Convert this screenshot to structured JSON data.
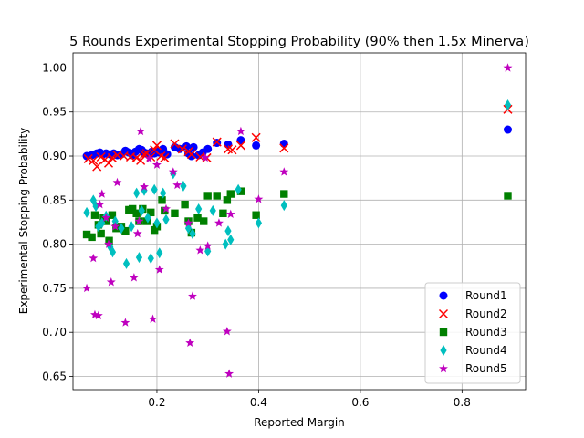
{
  "chart_data": {
    "type": "scatter",
    "title": "5 Rounds Experimental Stopping Probability (90% then 1.5x Minerva)",
    "xlabel": "Reported Margin",
    "ylabel": "Experimental Stopping Probability",
    "xlim": [
      0.035,
      0.925
    ],
    "ylim": [
      0.635,
      1.017
    ],
    "xticks": [
      0.2,
      0.4,
      0.6,
      0.8
    ],
    "xtick_labels": [
      "0.2",
      "0.4",
      "0.6",
      "0.8"
    ],
    "yticks": [
      0.65,
      0.7,
      0.75,
      0.8,
      0.85,
      0.9,
      0.95,
      1.0
    ],
    "ytick_labels": [
      "0.65",
      "0.70",
      "0.75",
      "0.80",
      "0.85",
      "0.90",
      "0.95",
      "1.00"
    ],
    "grid": true,
    "legend_position": "lower-right",
    "series": [
      {
        "name": "Round1",
        "color": "#0000ff",
        "marker": "circle",
        "points": [
          [
            0.062,
            0.9
          ],
          [
            0.072,
            0.901
          ],
          [
            0.078,
            0.902
          ],
          [
            0.082,
            0.903
          ],
          [
            0.088,
            0.904
          ],
          [
            0.094,
            0.902
          ],
          [
            0.1,
            0.903
          ],
          [
            0.108,
            0.902
          ],
          [
            0.115,
            0.903
          ],
          [
            0.122,
            0.901
          ],
          [
            0.13,
            0.902
          ],
          [
            0.138,
            0.906
          ],
          [
            0.145,
            0.904
          ],
          [
            0.152,
            0.901
          ],
          [
            0.158,
            0.905
          ],
          [
            0.165,
            0.908
          ],
          [
            0.17,
            0.907
          ],
          [
            0.175,
            0.904
          ],
          [
            0.18,
            0.903
          ],
          [
            0.185,
            0.902
          ],
          [
            0.19,
            0.905
          ],
          [
            0.195,
            0.903
          ],
          [
            0.2,
            0.906
          ],
          [
            0.205,
            0.904
          ],
          [
            0.212,
            0.908
          ],
          [
            0.22,
            0.902
          ],
          [
            0.235,
            0.91
          ],
          [
            0.245,
            0.908
          ],
          [
            0.258,
            0.911
          ],
          [
            0.262,
            0.903
          ],
          [
            0.268,
            0.9
          ],
          [
            0.272,
            0.91
          ],
          [
            0.282,
            0.901
          ],
          [
            0.29,
            0.904
          ],
          [
            0.3,
            0.908
          ],
          [
            0.318,
            0.915
          ],
          [
            0.34,
            0.913
          ],
          [
            0.365,
            0.918
          ],
          [
            0.395,
            0.912
          ],
          [
            0.45,
            0.914
          ],
          [
            0.89,
            0.93
          ]
        ]
      },
      {
        "name": "Round2",
        "color": "#ff0000",
        "marker": "x",
        "points": [
          [
            0.065,
            0.897
          ],
          [
            0.075,
            0.895
          ],
          [
            0.082,
            0.888
          ],
          [
            0.09,
            0.899
          ],
          [
            0.098,
            0.896
          ],
          [
            0.105,
            0.892
          ],
          [
            0.112,
            0.898
          ],
          [
            0.122,
            0.901
          ],
          [
            0.135,
            0.9
          ],
          [
            0.148,
            0.899
          ],
          [
            0.16,
            0.898
          ],
          [
            0.168,
            0.895
          ],
          [
            0.175,
            0.902
          ],
          [
            0.18,
            0.903
          ],
          [
            0.188,
            0.899
          ],
          [
            0.195,
            0.907
          ],
          [
            0.2,
            0.912
          ],
          [
            0.208,
            0.9
          ],
          [
            0.215,
            0.898
          ],
          [
            0.235,
            0.914
          ],
          [
            0.25,
            0.908
          ],
          [
            0.262,
            0.905
          ],
          [
            0.268,
            0.902
          ],
          [
            0.285,
            0.899
          ],
          [
            0.298,
            0.898
          ],
          [
            0.318,
            0.916
          ],
          [
            0.34,
            0.908
          ],
          [
            0.348,
            0.907
          ],
          [
            0.365,
            0.912
          ],
          [
            0.395,
            0.921
          ],
          [
            0.45,
            0.909
          ],
          [
            0.89,
            0.953
          ]
        ]
      },
      {
        "name": "Round3",
        "color": "#008000",
        "marker": "square",
        "points": [
          [
            0.062,
            0.811
          ],
          [
            0.072,
            0.808
          ],
          [
            0.078,
            0.833
          ],
          [
            0.085,
            0.822
          ],
          [
            0.09,
            0.812
          ],
          [
            0.095,
            0.83
          ],
          [
            0.1,
            0.826
          ],
          [
            0.106,
            0.804
          ],
          [
            0.112,
            0.833
          ],
          [
            0.12,
            0.818
          ],
          [
            0.13,
            0.82
          ],
          [
            0.138,
            0.815
          ],
          [
            0.145,
            0.839
          ],
          [
            0.152,
            0.84
          ],
          [
            0.16,
            0.835
          ],
          [
            0.165,
            0.826
          ],
          [
            0.172,
            0.84
          ],
          [
            0.18,
            0.826
          ],
          [
            0.188,
            0.836
          ],
          [
            0.195,
            0.816
          ],
          [
            0.2,
            0.82
          ],
          [
            0.21,
            0.85
          ],
          [
            0.215,
            0.838
          ],
          [
            0.235,
            0.835
          ],
          [
            0.255,
            0.845
          ],
          [
            0.262,
            0.826
          ],
          [
            0.268,
            0.813
          ],
          [
            0.28,
            0.83
          ],
          [
            0.292,
            0.826
          ],
          [
            0.3,
            0.855
          ],
          [
            0.318,
            0.855
          ],
          [
            0.33,
            0.835
          ],
          [
            0.338,
            0.85
          ],
          [
            0.345,
            0.857
          ],
          [
            0.365,
            0.86
          ],
          [
            0.395,
            0.833
          ],
          [
            0.45,
            0.857
          ],
          [
            0.89,
            0.855
          ]
        ]
      },
      {
        "name": "Round4",
        "color": "#00bfbf",
        "marker": "thin_diamond",
        "points": [
          [
            0.062,
            0.836
          ],
          [
            0.075,
            0.85
          ],
          [
            0.08,
            0.843
          ],
          [
            0.085,
            0.82
          ],
          [
            0.092,
            0.824
          ],
          [
            0.1,
            0.832
          ],
          [
            0.108,
            0.797
          ],
          [
            0.113,
            0.791
          ],
          [
            0.118,
            0.826
          ],
          [
            0.13,
            0.818
          ],
          [
            0.14,
            0.778
          ],
          [
            0.15,
            0.82
          ],
          [
            0.16,
            0.858
          ],
          [
            0.165,
            0.785
          ],
          [
            0.17,
            0.838
          ],
          [
            0.175,
            0.861
          ],
          [
            0.182,
            0.83
          ],
          [
            0.188,
            0.784
          ],
          [
            0.195,
            0.862
          ],
          [
            0.2,
            0.824
          ],
          [
            0.205,
            0.79
          ],
          [
            0.212,
            0.858
          ],
          [
            0.218,
            0.828
          ],
          [
            0.232,
            0.88
          ],
          [
            0.252,
            0.866
          ],
          [
            0.262,
            0.818
          ],
          [
            0.27,
            0.812
          ],
          [
            0.282,
            0.84
          ],
          [
            0.3,
            0.792
          ],
          [
            0.31,
            0.838
          ],
          [
            0.335,
            0.8
          ],
          [
            0.34,
            0.815
          ],
          [
            0.345,
            0.805
          ],
          [
            0.36,
            0.862
          ],
          [
            0.4,
            0.824
          ],
          [
            0.45,
            0.844
          ],
          [
            0.89,
            0.958
          ]
        ]
      },
      {
        "name": "Round5",
        "color": "#bf00bf",
        "marker": "star",
        "points": [
          [
            0.062,
            0.75
          ],
          [
            0.075,
            0.784
          ],
          [
            0.078,
            0.72
          ],
          [
            0.085,
            0.719
          ],
          [
            0.088,
            0.845
          ],
          [
            0.092,
            0.857
          ],
          [
            0.1,
            0.83
          ],
          [
            0.105,
            0.8
          ],
          [
            0.11,
            0.757
          ],
          [
            0.118,
            0.82
          ],
          [
            0.122,
            0.87
          ],
          [
            0.138,
            0.711
          ],
          [
            0.155,
            0.762
          ],
          [
            0.162,
            0.812
          ],
          [
            0.165,
            0.826
          ],
          [
            0.168,
            0.928
          ],
          [
            0.175,
            0.865
          ],
          [
            0.185,
            0.897
          ],
          [
            0.192,
            0.715
          ],
          [
            0.2,
            0.89
          ],
          [
            0.205,
            0.771
          ],
          [
            0.218,
            0.84
          ],
          [
            0.232,
            0.882
          ],
          [
            0.24,
            0.867
          ],
          [
            0.262,
            0.824
          ],
          [
            0.265,
            0.688
          ],
          [
            0.27,
            0.741
          ],
          [
            0.285,
            0.793
          ],
          [
            0.295,
            0.898
          ],
          [
            0.3,
            0.798
          ],
          [
            0.322,
            0.824
          ],
          [
            0.338,
            0.701
          ],
          [
            0.342,
            0.653
          ],
          [
            0.345,
            0.834
          ],
          [
            0.365,
            0.928
          ],
          [
            0.4,
            0.851
          ],
          [
            0.45,
            0.882
          ],
          [
            0.89,
            1.0
          ]
        ]
      }
    ]
  }
}
